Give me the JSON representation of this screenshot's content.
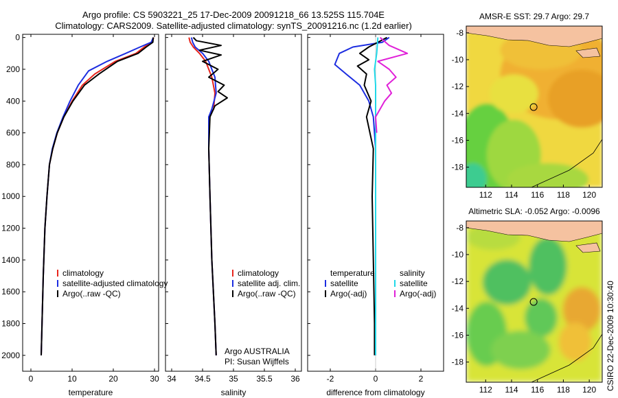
{
  "title": {
    "line1": "Argo profile: CS 5903221_25 17-Dec-2009 20091218_66 13.525S 115.704E",
    "line2": "Climatology: CARS2009. Satellite-adjusted climatology: synTS_20091216.nc (1.2d earlier)"
  },
  "side_text": "CSIRO 22-Dec-2009 10:30:40",
  "colors": {
    "climatology": "#e8251c",
    "satellite": "#1c2de0",
    "argo": "#000000",
    "sat_diff": "#20d8e8",
    "argo_diff": "#e020d8",
    "land": "#f5c2a0"
  },
  "chart_data": [
    {
      "type": "line",
      "name": "temperature-profile",
      "xlabel": "temperature",
      "ylabel": "",
      "xlim": [
        -2,
        31
      ],
      "ylim": [
        2100,
        -20
      ],
      "xticks": [
        0,
        10,
        20,
        30
      ],
      "yticks": [
        0,
        200,
        400,
        600,
        800,
        1000,
        1200,
        1400,
        1600,
        1800,
        2000
      ],
      "legend": {
        "position": "lower-right",
        "entries": [
          "climatology",
          "satellite-adjusted climatology",
          "Argo(..raw -QC)"
        ]
      },
      "series": [
        {
          "name": "climatology",
          "color": "climatology",
          "x": [
            29.8,
            29.4,
            27.5,
            25.5,
            20.5,
            15.5,
            12.5,
            10.0,
            8.0,
            6.4,
            5.3,
            4.5,
            3.9,
            3.4,
            3.0,
            2.7,
            2.5
          ],
          "y": [
            0,
            30,
            60,
            100,
            150,
            230,
            300,
            400,
            500,
            600,
            700,
            800,
            1000,
            1200,
            1500,
            1800,
            2000
          ]
        },
        {
          "name": "satellite-adjusted climatology",
          "color": "satellite",
          "x": [
            29.7,
            29.2,
            26.5,
            23.0,
            18.5,
            14.0,
            11.5,
            9.5,
            7.8,
            6.3,
            5.2,
            4.5,
            3.9,
            3.4,
            3.0,
            2.7,
            2.5
          ],
          "y": [
            0,
            30,
            60,
            100,
            150,
            210,
            300,
            400,
            500,
            600,
            700,
            800,
            1000,
            1200,
            1500,
            1800,
            2000
          ]
        },
        {
          "name": "Argo(..raw -QC)",
          "color": "argo",
          "x": [
            29.7,
            29.6,
            28.0,
            26.0,
            21.0,
            16.5,
            13.0,
            10.2,
            8.0,
            6.4,
            5.3,
            4.5,
            3.9,
            3.4,
            3.0,
            2.7,
            2.5
          ],
          "y": [
            0,
            30,
            60,
            100,
            150,
            230,
            300,
            400,
            500,
            600,
            700,
            800,
            1000,
            1200,
            1500,
            1800,
            2000
          ]
        }
      ]
    },
    {
      "type": "line",
      "name": "salinity-profile",
      "xlabel": "salinity",
      "xlim": [
        33.9,
        36.1
      ],
      "ylim": [
        2100,
        -20
      ],
      "xticks": [
        34,
        34.5,
        35,
        35.5,
        36
      ],
      "legend": {
        "position": "lower-right",
        "entries": [
          "climatology",
          "satellite adj. clim.",
          "Argo(..raw -QC)"
        ]
      },
      "annotation": [
        "Argo AUSTRALIA",
        "PI: Susan Wijffels"
      ],
      "series": [
        {
          "name": "climatology",
          "color": "climatology",
          "x": [
            34.28,
            34.3,
            34.35,
            34.45,
            34.55,
            34.65,
            34.7,
            34.68,
            34.6,
            34.6,
            34.62,
            34.65,
            34.7,
            34.72
          ],
          "y": [
            0,
            30,
            60,
            100,
            150,
            250,
            350,
            450,
            500,
            700,
            1000,
            1400,
            1800,
            2000
          ]
        },
        {
          "name": "satellite adj. clim.",
          "color": "satellite",
          "x": [
            34.32,
            34.34,
            34.38,
            34.5,
            34.6,
            34.7,
            34.72,
            34.65,
            34.6,
            34.6,
            34.62,
            34.65,
            34.7,
            34.72
          ],
          "y": [
            0,
            30,
            60,
            100,
            150,
            250,
            350,
            450,
            500,
            700,
            1000,
            1400,
            1800,
            2000
          ]
        },
        {
          "name": "Argo(..raw -QC)",
          "color": "argo",
          "x": [
            34.35,
            34.4,
            34.8,
            34.45,
            34.8,
            34.5,
            34.75,
            34.6,
            34.85,
            34.75,
            34.9,
            34.7,
            34.62,
            34.6,
            34.62,
            34.65,
            34.7,
            34.72
          ],
          "y": [
            0,
            20,
            50,
            80,
            110,
            150,
            200,
            250,
            300,
            340,
            380,
            430,
            500,
            700,
            1000,
            1400,
            1800,
            2000
          ]
        }
      ]
    },
    {
      "type": "line",
      "name": "difference-from-climatology",
      "xlabel": "difference from climatology",
      "xlim": [
        -3,
        3
      ],
      "ylim": [
        2100,
        -20
      ],
      "xticks": [
        -2,
        0,
        2
      ],
      "legend": {
        "position": "center",
        "headers": [
          "temperature",
          "salinity"
        ],
        "entries": [
          "satellite",
          "Argo(-adj)",
          "satellite",
          "Argo(-adj)"
        ]
      },
      "series": [
        {
          "name": "temperature satellite",
          "color": "satellite",
          "x": [
            0.6,
            0.3,
            -1.0,
            -1.6,
            -1.8,
            -1.3,
            -0.7,
            -0.3,
            -0.1,
            0.0,
            0.0,
            0.0,
            0.0
          ],
          "y": [
            0,
            30,
            60,
            100,
            170,
            230,
            300,
            400,
            500,
            700,
            1000,
            1500,
            2000
          ]
        },
        {
          "name": "temperature Argo(-adj)",
          "color": "argo",
          "x": [
            0.5,
            0.1,
            -0.3,
            -0.7,
            -0.3,
            -0.8,
            -0.4,
            -0.5,
            -0.2,
            -0.4,
            -0.1,
            -0.15,
            -0.1,
            -0.05,
            -0.05
          ],
          "y": [
            0,
            30,
            60,
            100,
            140,
            180,
            230,
            300,
            400,
            500,
            700,
            1000,
            1400,
            1800,
            2000
          ]
        },
        {
          "name": "salinity satellite",
          "color": "sat_diff",
          "x": [
            0.1,
            0.05,
            -0.05,
            0.0,
            0.0,
            0.0,
            0.0,
            0.0,
            0.0
          ],
          "y": [
            0,
            100,
            200,
            300,
            500,
            800,
            1200,
            1600,
            2000
          ]
        },
        {
          "name": "salinity Argo(-adj)",
          "color": "argo_diff",
          "x": [
            0.2,
            0.6,
            1.4,
            0.1,
            0.6,
            0.9,
            0.5,
            0.7,
            0.4,
            0.0,
            0.05
          ],
          "y": [
            0,
            50,
            100,
            150,
            200,
            250,
            300,
            350,
            400,
            500,
            600
          ]
        }
      ]
    },
    {
      "type": "heatmap",
      "name": "sst-map",
      "title": "AMSR-E SST: 29.7 Argo: 29.7",
      "xlim": [
        110.5,
        121
      ],
      "ylim": [
        -19.5,
        -7.5
      ],
      "xticks": [
        112,
        114,
        116,
        118,
        120
      ],
      "yticks": [
        -8,
        -10,
        -12,
        -14,
        -16,
        -18
      ],
      "marker": {
        "lon": 115.704,
        "lat": -13.525
      }
    },
    {
      "type": "heatmap",
      "name": "sla-map",
      "title": "Altimetric SLA: -0.052 Argo: -0.0096",
      "xlim": [
        110.5,
        121
      ],
      "ylim": [
        -19.5,
        -7.5
      ],
      "xticks": [
        112,
        114,
        116,
        118,
        120
      ],
      "yticks": [
        -8,
        -10,
        -12,
        -14,
        -16,
        -18
      ],
      "marker": {
        "lon": 115.704,
        "lat": -13.525
      }
    }
  ]
}
